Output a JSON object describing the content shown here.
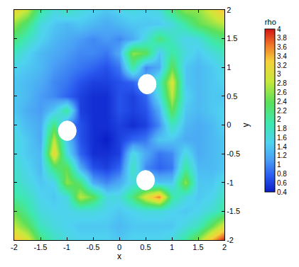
{
  "chart_data": {
    "type": "heatmap",
    "x_label": "x",
    "y_label": "y",
    "x": [
      -2,
      -1.75,
      -1.5,
      -1.25,
      -1,
      -0.75,
      -0.5,
      -0.25,
      0,
      0.25,
      0.5,
      0.75,
      1,
      1.25,
      1.5,
      1.75,
      2
    ],
    "y": [
      -2,
      -1.75,
      -1.5,
      -1.25,
      -1,
      -0.75,
      -0.5,
      -0.25,
      0,
      0.25,
      0.5,
      0.75,
      1,
      1.25,
      1.5,
      1.75,
      2
    ],
    "z": [
      [
        3.4,
        3.0,
        2.2,
        1.8,
        1.6,
        1.5,
        1.5,
        1.5,
        1.4,
        1.5,
        1.5,
        1.5,
        1.6,
        2.0,
        2.6,
        3.4,
        4.0
      ],
      [
        2.8,
        2.4,
        1.8,
        1.6,
        1.5,
        1.4,
        1.4,
        1.4,
        1.3,
        1.4,
        1.4,
        1.4,
        1.4,
        1.6,
        1.8,
        2.4,
        3.0
      ],
      [
        2.4,
        2.0,
        1.6,
        1.5,
        1.5,
        1.6,
        1.6,
        1.5,
        1.4,
        1.5,
        1.6,
        1.6,
        1.5,
        1.4,
        1.5,
        1.7,
        2.0
      ],
      [
        2.0,
        1.8,
        1.5,
        1.4,
        1.6,
        2.8,
        2.4,
        1.6,
        1.6,
        2.2,
        3.0,
        3.6,
        2.0,
        1.6,
        1.4,
        1.5,
        1.8
      ],
      [
        1.8,
        1.6,
        1.4,
        1.5,
        2.6,
        2.2,
        1.2,
        1.0,
        1.2,
        1.6,
        1.6,
        1.4,
        1.4,
        2.6,
        1.4,
        1.4,
        1.6
      ],
      [
        1.7,
        1.5,
        1.3,
        2.2,
        2.4,
        1.2,
        0.7,
        0.6,
        0.8,
        1.8,
        1.0,
        0.8,
        0.9,
        2.0,
        1.3,
        1.3,
        1.4
      ],
      [
        1.6,
        1.4,
        1.3,
        3.2,
        1.6,
        0.8,
        0.5,
        0.5,
        0.6,
        1.6,
        1.2,
        0.9,
        1.0,
        1.6,
        1.2,
        1.3,
        1.4
      ],
      [
        1.6,
        1.4,
        1.2,
        2.8,
        1.4,
        0.7,
        0.5,
        0.4,
        0.6,
        0.8,
        0.9,
        1.4,
        1.4,
        1.2,
        1.2,
        1.3,
        1.4
      ],
      [
        1.5,
        1.3,
        1.2,
        2.2,
        1.0,
        0.7,
        0.5,
        0.5,
        0.6,
        0.5,
        0.6,
        1.0,
        1.8,
        1.3,
        1.2,
        1.3,
        1.5
      ],
      [
        1.4,
        1.2,
        1.1,
        1.4,
        2.0,
        0.6,
        0.5,
        0.5,
        0.7,
        0.6,
        0.7,
        1.2,
        2.4,
        1.4,
        1.3,
        1.4,
        1.5
      ],
      [
        1.4,
        1.3,
        1.1,
        1.0,
        0.8,
        0.6,
        0.5,
        0.5,
        0.7,
        0.6,
        0.8,
        1.6,
        2.8,
        1.5,
        1.3,
        1.4,
        1.4
      ],
      [
        1.4,
        1.3,
        1.2,
        1.0,
        0.9,
        0.7,
        0.6,
        0.6,
        0.7,
        0.8,
        1.2,
        1.8,
        3.0,
        1.4,
        1.3,
        1.4,
        1.5
      ],
      [
        1.5,
        1.4,
        1.3,
        1.1,
        1.0,
        0.9,
        0.8,
        0.7,
        0.9,
        2.0,
        1.0,
        1.2,
        2.4,
        1.4,
        1.3,
        1.4,
        1.6
      ],
      [
        1.8,
        1.5,
        1.3,
        1.2,
        1.1,
        1.0,
        1.0,
        0.9,
        1.2,
        2.6,
        2.4,
        1.4,
        2.0,
        1.6,
        1.4,
        1.6,
        1.8
      ],
      [
        2.2,
        1.8,
        1.5,
        1.3,
        1.2,
        1.1,
        1.0,
        1.1,
        1.0,
        1.2,
        1.6,
        2.2,
        1.8,
        1.5,
        1.6,
        2.0,
        2.2
      ],
      [
        2.6,
        2.2,
        1.6,
        1.4,
        1.3,
        1.4,
        1.3,
        1.2,
        1.3,
        1.4,
        1.4,
        1.4,
        1.6,
        2.0,
        2.4,
        2.6,
        2.8
      ],
      [
        3.2,
        2.8,
        2.0,
        1.6,
        1.8,
        1.6,
        1.5,
        1.4,
        1.5,
        1.6,
        1.5,
        1.6,
        2.2,
        2.6,
        2.6,
        3.0,
        3.4
      ]
    ],
    "xlim": [
      -2,
      2
    ],
    "xticks": [
      -2,
      -1.5,
      -1,
      -0.5,
      0,
      0.5,
      1,
      1.5,
      2
    ],
    "ylim": [
      -2,
      2
    ],
    "yticks": [
      -2,
      -1.5,
      -1,
      -0.5,
      0,
      0.5,
      1,
      1.5,
      2
    ],
    "colorbar": {
      "title": "rho",
      "range": [
        0.4,
        4
      ],
      "ticks": [
        0.4,
        0.6,
        0.8,
        1,
        1.2,
        1.4,
        1.6,
        1.8,
        2,
        2.2,
        2.4,
        2.6,
        2.8,
        3,
        3.2,
        3.4,
        3.6,
        3.8,
        4
      ]
    },
    "cylinders": [
      {
        "x": 0.53,
        "y": 0.71,
        "r": 0.17
      },
      {
        "x": -0.99,
        "y": -0.1,
        "r": 0.17
      },
      {
        "x": 0.5,
        "y": -0.96,
        "r": 0.17
      }
    ]
  }
}
